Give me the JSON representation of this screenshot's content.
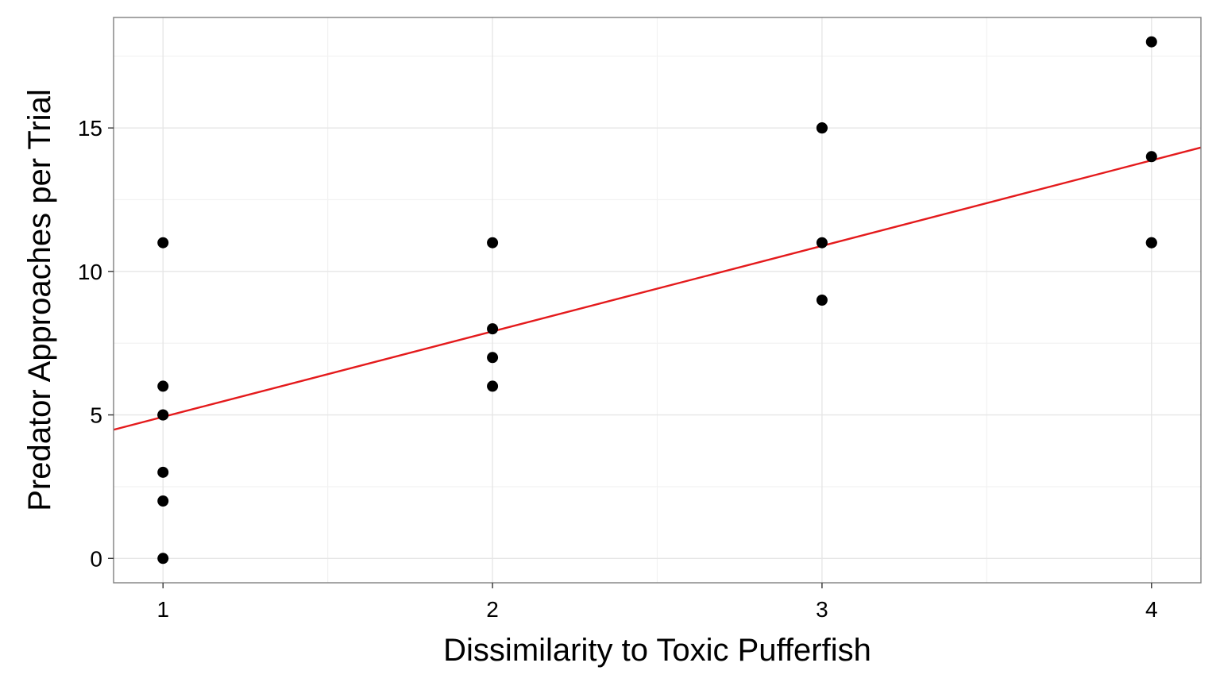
{
  "chart_data": {
    "type": "scatter",
    "title": "",
    "xlabel": "Dissimilarity to Toxic Pufferfish",
    "ylabel": "Predator Approaches per Trial",
    "xlim": [
      0.85,
      4.15
    ],
    "ylim": [
      -0.85,
      18.85
    ],
    "x_ticks": [
      1,
      2,
      3,
      4
    ],
    "x_tick_labels": [
      "1",
      "2",
      "3",
      "4"
    ],
    "y_ticks": [
      0,
      5,
      10,
      15
    ],
    "y_tick_labels": [
      "0",
      "5",
      "10",
      "15"
    ],
    "grid": true,
    "legend": "none",
    "points": [
      {
        "x": 1,
        "y": 11
      },
      {
        "x": 1,
        "y": 6
      },
      {
        "x": 1,
        "y": 5
      },
      {
        "x": 1,
        "y": 5
      },
      {
        "x": 1,
        "y": 3
      },
      {
        "x": 1,
        "y": 2
      },
      {
        "x": 1,
        "y": 0
      },
      {
        "x": 2,
        "y": 11
      },
      {
        "x": 2,
        "y": 8
      },
      {
        "x": 2,
        "y": 7
      },
      {
        "x": 2,
        "y": 6
      },
      {
        "x": 3,
        "y": 15
      },
      {
        "x": 3,
        "y": 15
      },
      {
        "x": 3,
        "y": 11
      },
      {
        "x": 3,
        "y": 9
      },
      {
        "x": 4,
        "y": 18
      },
      {
        "x": 4,
        "y": 14
      },
      {
        "x": 4,
        "y": 11
      },
      {
        "x": 4,
        "y": 11
      }
    ],
    "fit_line": {
      "intercept": 1.95,
      "slope": 2.98
    },
    "point_color": "#000000",
    "fit_line_color": "#e41a1c",
    "panel_border_color": "#7f7f7f",
    "grid_color": "#e6e6e6"
  }
}
